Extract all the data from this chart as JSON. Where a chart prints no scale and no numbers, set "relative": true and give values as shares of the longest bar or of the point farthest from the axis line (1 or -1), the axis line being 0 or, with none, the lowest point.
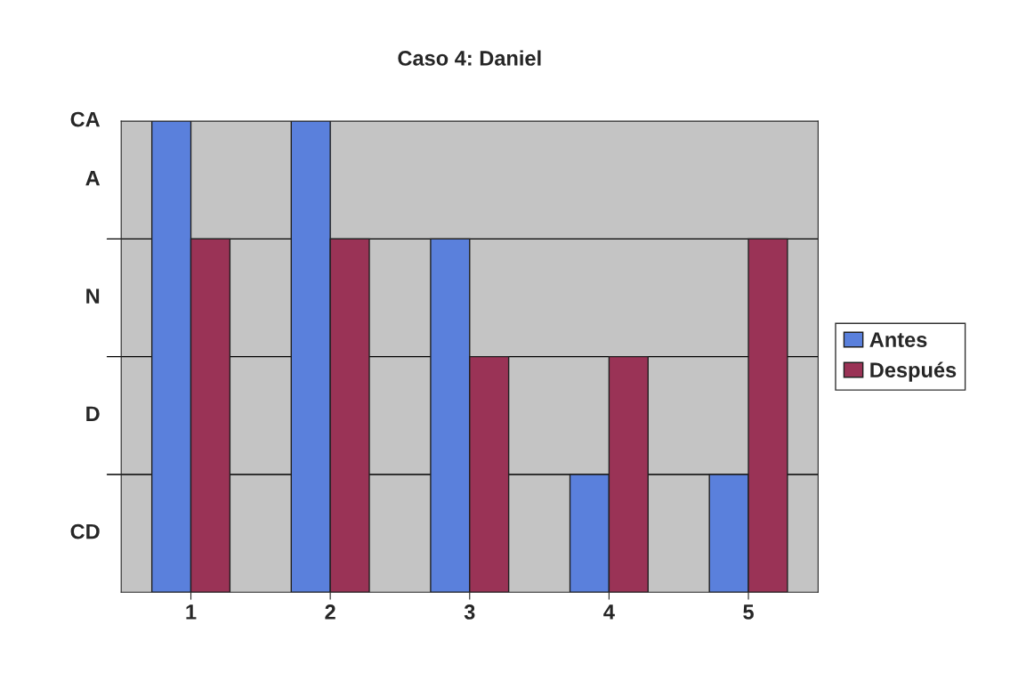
{
  "chart_data": {
    "type": "bar",
    "title": "Caso 4: Daniel",
    "categories": [
      "1",
      "2",
      "3",
      "4",
      "5"
    ],
    "series": [
      {
        "name": "Antes",
        "color": "#5a80dc",
        "values": [
          1,
          1,
          0.75,
          0.25,
          0.25
        ]
      },
      {
        "name": "Después",
        "color": "#9a3356",
        "values": [
          0.75,
          0.75,
          0.5,
          0.5,
          0.75
        ]
      }
    ],
    "relative": true,
    "annotations": [
      "CD",
      "D",
      "N",
      "A",
      "CA"
    ],
    "grid": "y",
    "legend": "right"
  }
}
